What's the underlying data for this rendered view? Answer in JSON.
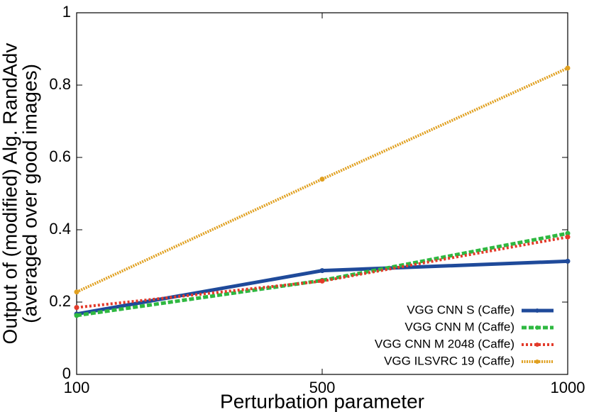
{
  "chart_data": {
    "type": "line",
    "xlabel": "Perturbation parameter",
    "ylabel": [
      "Output of (modified) Alg. RandAdv",
      "(averaged over good images)"
    ],
    "categories": [
      "100",
      "500",
      "1000"
    ],
    "ylim": [
      0,
      1
    ],
    "yticks": [
      0,
      0.2,
      0.4,
      0.6,
      0.8,
      1
    ],
    "grid": false,
    "legend": "lower right",
    "series": [
      {
        "name": "VGG CNN S  (Caffe)",
        "color": "#1f4a9a",
        "values": [
          0.167,
          0.287,
          0.313
        ]
      },
      {
        "name": "VGG CNN M  (Caffe)",
        "color": "#2eb840",
        "values": [
          0.163,
          0.26,
          0.39
        ]
      },
      {
        "name": "VGG CNN M 2048 (Caffe)",
        "color": "#e33a2a",
        "values": [
          0.185,
          0.258,
          0.38
        ]
      },
      {
        "name": "VGG ILSVRC 19 (Caffe)",
        "color": "#e0a020",
        "values": [
          0.228,
          0.54,
          0.847
        ]
      }
    ]
  }
}
